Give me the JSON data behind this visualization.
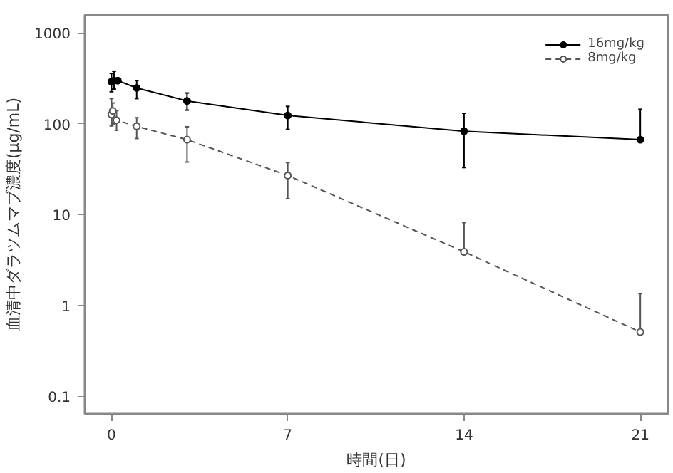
{
  "chart_data": {
    "type": "line",
    "xlabel": "時間(日)",
    "ylabel": "血清中ダラツムマブ濃度(μg/mL)",
    "xlim": [
      -1.06,
      22.1
    ],
    "ylim": [
      0.064,
      1585
    ],
    "xticks": [
      0,
      7,
      14,
      21
    ],
    "yticks": [
      0.1,
      1,
      10,
      100,
      1000
    ],
    "log": "y",
    "grid": false,
    "legend": "top right",
    "marker": "circle",
    "series": [
      {
        "name": "16mg/kg",
        "color": "#000000",
        "line_style": "solid",
        "x": [
          0,
          0.1,
          0.25,
          1,
          3,
          7,
          14,
          21
        ],
        "values": [
          292,
          300,
          300,
          249,
          179,
          124,
          83,
          67
        ],
        "errors": [
          [
            226,
            360
          ],
          [
            242,
            381
          ],
          null,
          [
            190,
            300
          ],
          [
            142,
            219
          ],
          [
            87,
            156
          ],
          [
            33,
            131
          ],
          [
            67,
            145
          ]
        ]
      },
      {
        "name": "8mg/kg",
        "color": "#555555",
        "line_style": "dashed",
        "x": [
          0,
          0.05,
          0.2,
          1,
          3,
          7,
          14,
          21
        ],
        "values": [
          127,
          139,
          110,
          94,
          67,
          27,
          3.9,
          0.51
        ],
        "errors": [
          [
            95,
            190
          ],
          [
            100,
            170
          ],
          [
            85,
            140
          ],
          [
            69,
            117
          ],
          [
            38,
            93
          ],
          [
            15,
            37.5
          ],
          [
            3.9,
            8.2
          ],
          [
            0.51,
            1.35
          ]
        ]
      }
    ]
  }
}
